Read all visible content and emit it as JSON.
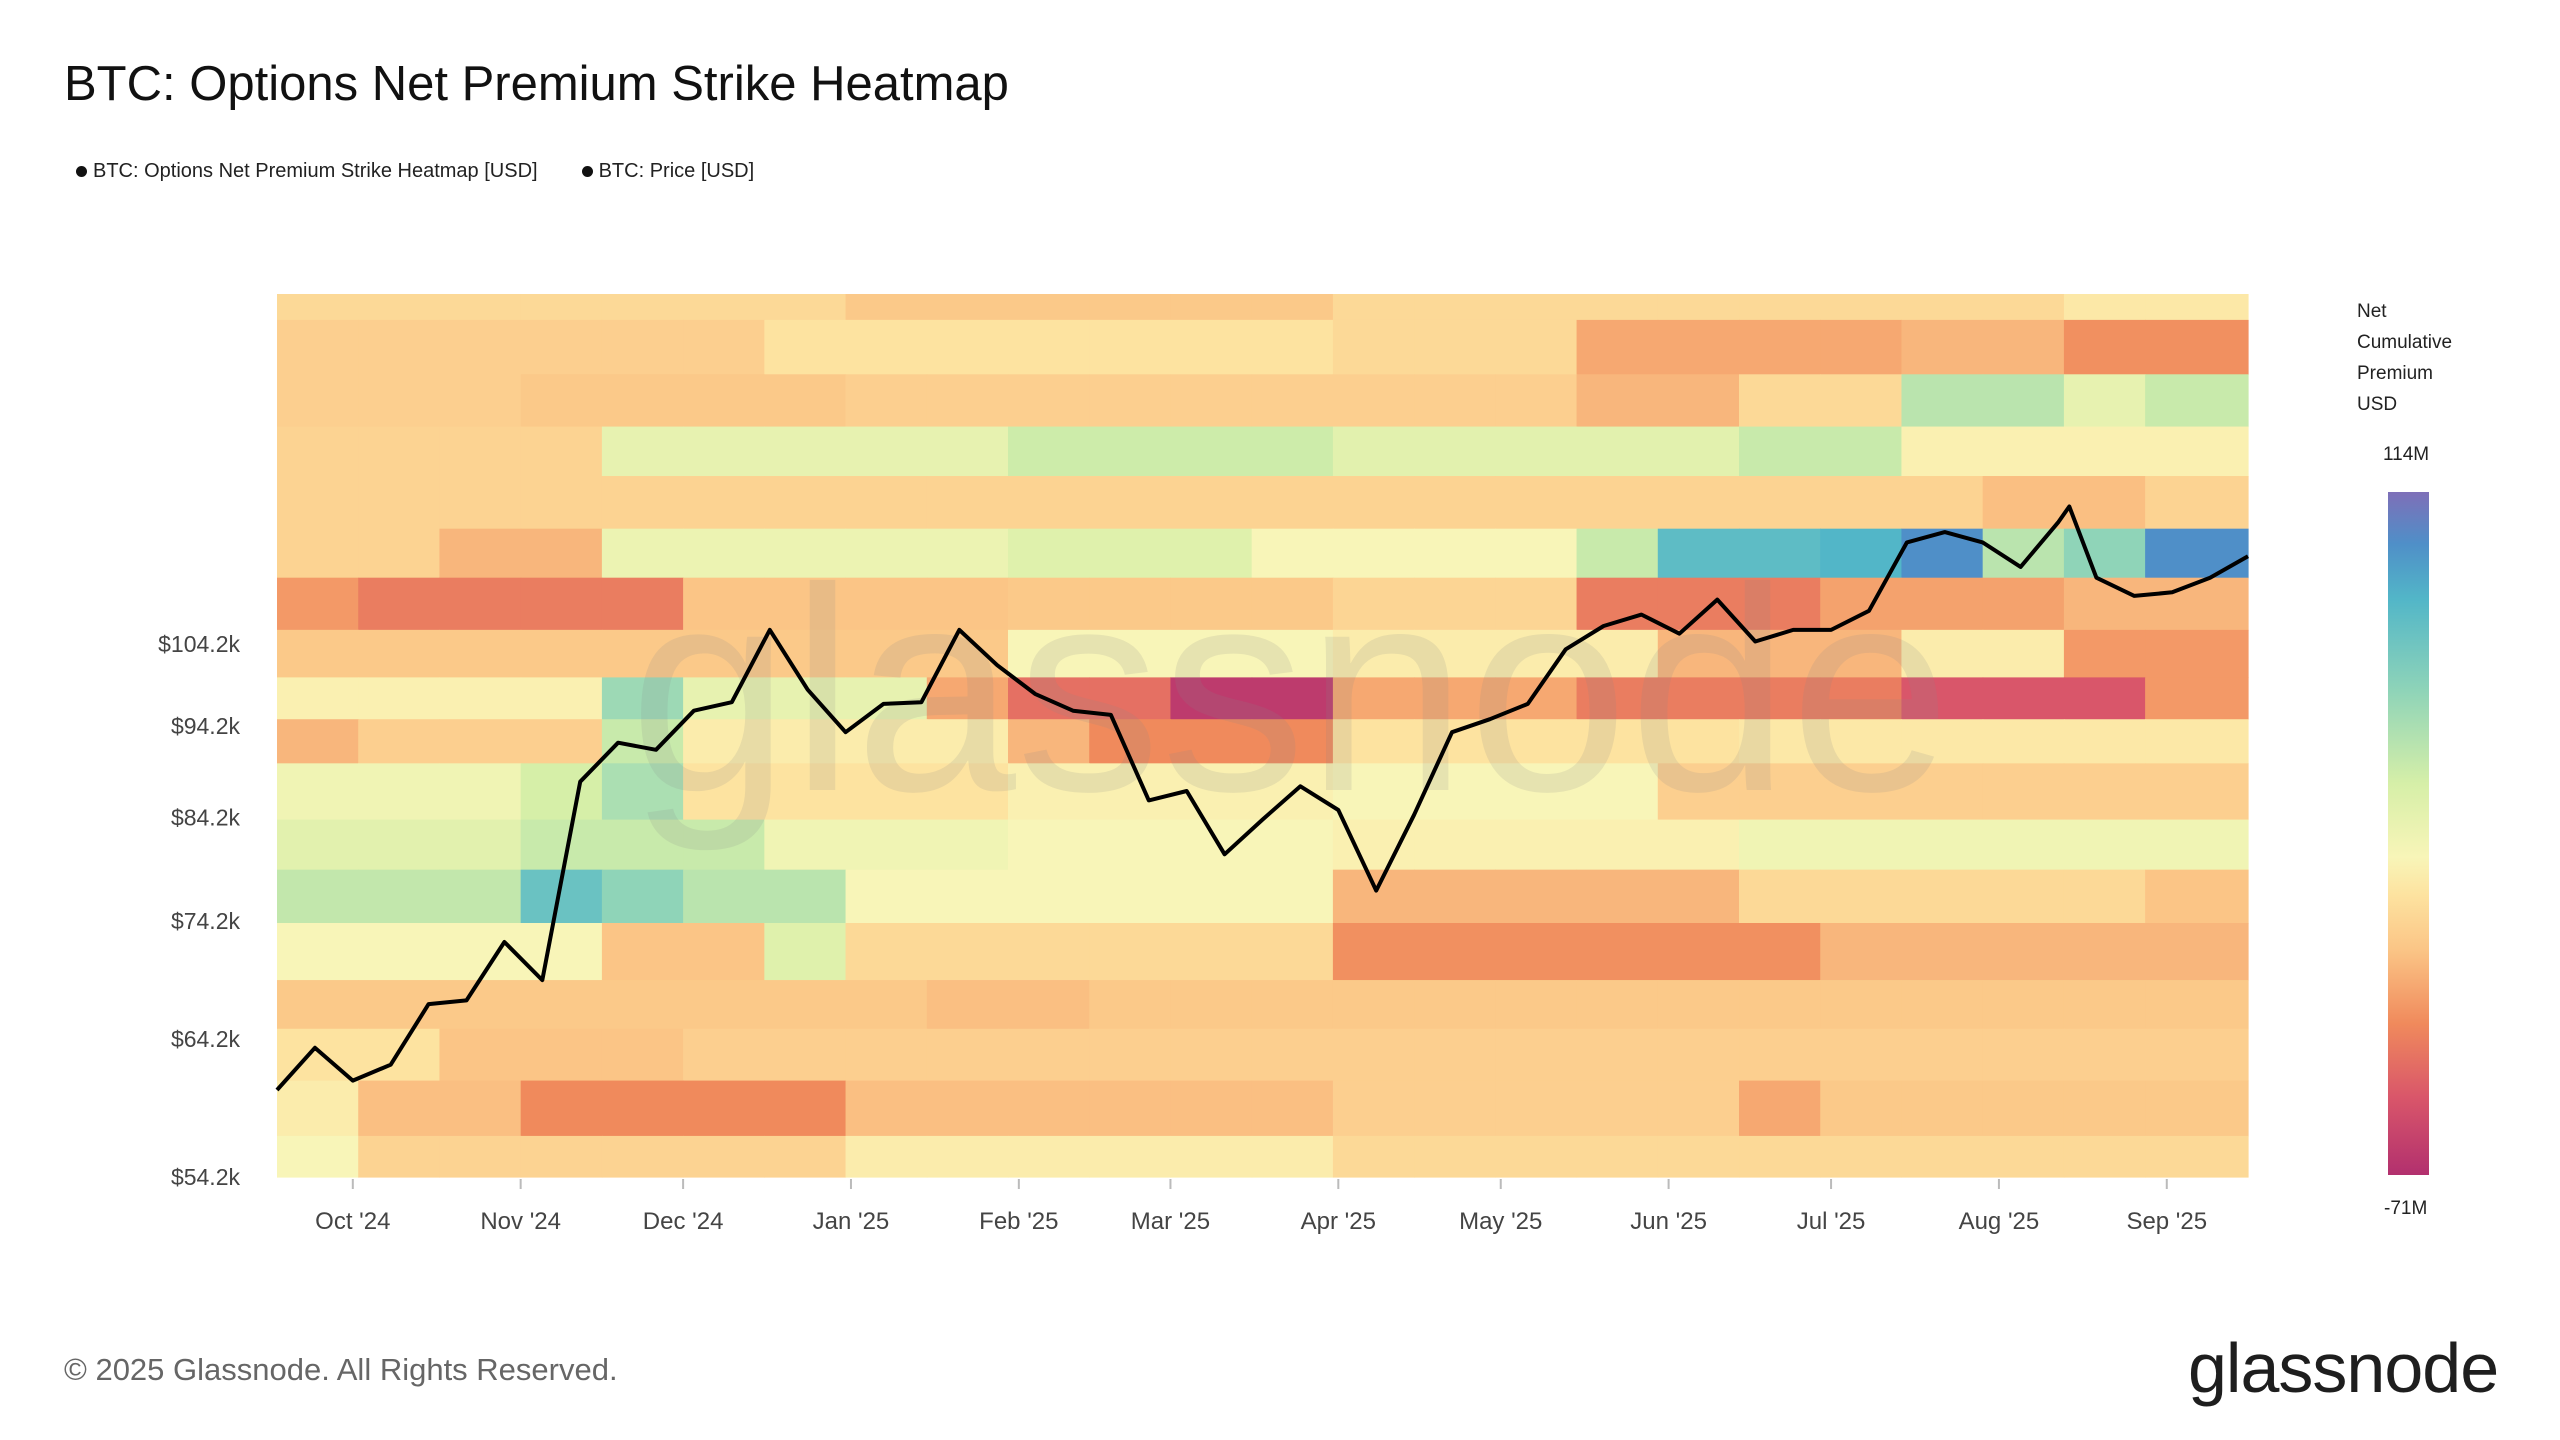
{
  "title": "BTC: Options Net Premium Strike Heatmap",
  "legend": [
    {
      "label": "BTC: Options Net Premium Strike Heatmap [USD]",
      "color": "#111111"
    },
    {
      "label": "BTC: Price [USD]",
      "color": "#111111"
    }
  ],
  "colorbar": {
    "title_lines": [
      "Net",
      "Cumulative",
      "Premium",
      "USD"
    ],
    "max_label": "114M",
    "min_label": "-71M",
    "min": -71,
    "max": 114,
    "stops": [
      [
        -71,
        "#b2306e"
      ],
      [
        -50,
        "#d9566a"
      ],
      [
        -30,
        "#f08a5c"
      ],
      [
        -10,
        "#fbc586"
      ],
      [
        5,
        "#fde3a0"
      ],
      [
        15,
        "#f8f5b8"
      ],
      [
        35,
        "#d6efa8"
      ],
      [
        60,
        "#8fd4b8"
      ],
      [
        85,
        "#52b6c8"
      ],
      [
        100,
        "#4f8fc8"
      ],
      [
        114,
        "#7e6fb8"
      ]
    ]
  },
  "footer": "© 2025 Glassnode. All Rights Reserved.",
  "logo": "glassnode",
  "watermark": "glassnode",
  "chart_data": {
    "type": "heatmap",
    "title": "BTC: Options Net Premium Strike Heatmap",
    "y_scale": "log",
    "ylim": [
      54200,
      160000
    ],
    "xlim": [
      "2024-09-17",
      "2025-09-16"
    ],
    "grid": false,
    "legend_placement": "top-left",
    "y_ticks": [
      {
        "label": "$104.2k",
        "value": 104200
      },
      {
        "label": "$94.2k",
        "value": 94200
      },
      {
        "label": "$84.2k",
        "value": 84200
      },
      {
        "label": "$74.2k",
        "value": 74200
      },
      {
        "label": "$64.2k",
        "value": 64200
      },
      {
        "label": "$54.2k",
        "value": 54200
      }
    ],
    "x_ticks": [
      {
        "label": "Oct '24",
        "date": "2024-10-01"
      },
      {
        "label": "Nov '24",
        "date": "2024-11-01"
      },
      {
        "label": "Dec '24",
        "date": "2024-12-01"
      },
      {
        "label": "Jan '25",
        "date": "2025-01-01"
      },
      {
        "label": "Feb '25",
        "date": "2025-02-01"
      },
      {
        "label": "Mar '25",
        "date": "2025-03-01"
      },
      {
        "label": "Apr '25",
        "date": "2025-04-01"
      },
      {
        "label": "May '25",
        "date": "2025-05-01"
      },
      {
        "label": "Jun '25",
        "date": "2025-06-01"
      },
      {
        "label": "Jul '25",
        "date": "2025-07-01"
      },
      {
        "label": "Aug '25",
        "date": "2025-08-01"
      },
      {
        "label": "Sep '25",
        "date": "2025-09-01"
      }
    ],
    "time_bin_edges": [
      "2024-09-17",
      "2024-10-02",
      "2024-10-17",
      "2024-11-01",
      "2024-11-16",
      "2024-12-01",
      "2024-12-16",
      "2024-12-31",
      "2025-01-15",
      "2025-01-30",
      "2025-02-14",
      "2025-03-01",
      "2025-03-16",
      "2025-03-31",
      "2025-04-15",
      "2025-04-30",
      "2025-05-15",
      "2025-05-30",
      "2025-06-14",
      "2025-06-29",
      "2025-07-14",
      "2025-07-29",
      "2025-08-13",
      "2025-08-28",
      "2025-09-16"
    ],
    "strike_bin_edges_usd": [
      160000,
      155000,
      145000,
      136000,
      128000,
      120000,
      113000,
      106000,
      100000,
      95000,
      90000,
      84000,
      79000,
      74000,
      69000,
      65000,
      61000,
      57000,
      54000
    ],
    "heatmap_values_musd_top_to_bottom": [
      [
        0,
        0,
        0,
        0,
        0,
        0,
        0,
        -8,
        -8,
        -8,
        -8,
        -8,
        -8,
        0,
        0,
        0,
        0,
        0,
        0,
        0,
        0,
        0,
        8,
        8
      ],
      [
        -5,
        -5,
        -5,
        -5,
        -5,
        -5,
        5,
        5,
        5,
        5,
        5,
        5,
        5,
        0,
        0,
        0,
        -20,
        -20,
        -20,
        -20,
        -15,
        -15,
        -28,
        -28
      ],
      [
        -5,
        -5,
        -5,
        -8,
        -8,
        -8,
        -8,
        -5,
        -5,
        -5,
        -5,
        -5,
        -5,
        -5,
        -5,
        -5,
        -15,
        -15,
        0,
        0,
        45,
        45,
        25,
        40
      ],
      [
        -3,
        -3,
        -3,
        -3,
        25,
        25,
        25,
        25,
        25,
        38,
        38,
        38,
        38,
        28,
        28,
        28,
        28,
        28,
        40,
        40,
        12,
        12,
        12,
        12
      ],
      [
        -3,
        -3,
        -3,
        -3,
        -3,
        -3,
        -3,
        -3,
        -3,
        -3,
        -3,
        -3,
        -3,
        -3,
        -3,
        -3,
        -3,
        -3,
        -3,
        -3,
        -3,
        -12,
        -12,
        -3
      ],
      [
        -3,
        -3,
        -15,
        -15,
        22,
        22,
        22,
        22,
        22,
        30,
        30,
        30,
        15,
        15,
        15,
        15,
        40,
        80,
        80,
        85,
        100,
        45,
        60,
        100
      ],
      [
        -25,
        -35,
        -35,
        -35,
        -35,
        -10,
        -10,
        -10,
        -10,
        -8,
        -8,
        -8,
        -8,
        -2,
        -2,
        -2,
        -35,
        -35,
        -35,
        -22,
        -22,
        -22,
        -15,
        -15
      ],
      [
        -8,
        -8,
        -8,
        -8,
        -8,
        -8,
        -8,
        -8,
        -8,
        15,
        15,
        15,
        15,
        10,
        10,
        10,
        10,
        -15,
        -15,
        -15,
        10,
        10,
        -25,
        -25
      ],
      [
        12,
        12,
        12,
        12,
        55,
        25,
        25,
        25,
        -20,
        -40,
        -40,
        -65,
        -65,
        -20,
        -20,
        -20,
        -35,
        -35,
        -35,
        -35,
        -50,
        -50,
        -50,
        -25
      ],
      [
        -15,
        -5,
        -5,
        -5,
        40,
        10,
        10,
        10,
        10,
        -15,
        -30,
        -30,
        -30,
        5,
        5,
        5,
        5,
        5,
        8,
        8,
        8,
        8,
        8,
        8
      ],
      [
        20,
        20,
        20,
        35,
        50,
        5,
        5,
        5,
        5,
        12,
        12,
        12,
        12,
        15,
        15,
        15,
        15,
        -5,
        -5,
        -5,
        -5,
        -5,
        -5,
        -5
      ],
      [
        28,
        28,
        28,
        40,
        40,
        40,
        20,
        20,
        20,
        15,
        15,
        15,
        15,
        12,
        12,
        12,
        12,
        12,
        20,
        20,
        20,
        20,
        20,
        20
      ],
      [
        42,
        42,
        42,
        75,
        60,
        45,
        45,
        15,
        15,
        15,
        15,
        15,
        15,
        -15,
        -15,
        -15,
        -15,
        -15,
        0,
        0,
        0,
        0,
        0,
        -10
      ],
      [
        15,
        15,
        15,
        15,
        -10,
        -10,
        30,
        0,
        0,
        0,
        0,
        0,
        0,
        -28,
        -28,
        -28,
        -28,
        -28,
        -28,
        -15,
        -15,
        -15,
        -15,
        -15
      ],
      [
        -8,
        -8,
        -8,
        -8,
        -8,
        -8,
        -8,
        -8,
        -12,
        -12,
        -8,
        -8,
        -8,
        -8,
        -8,
        -8,
        -8,
        -8,
        -8,
        -8,
        -8,
        -8,
        -8,
        -8
      ],
      [
        5,
        5,
        -10,
        -10,
        -10,
        -5,
        -5,
        -5,
        -5,
        -5,
        -5,
        -5,
        -5,
        -5,
        -5,
        -5,
        -5,
        -5,
        -5,
        -5,
        -5,
        -5,
        -5,
        -5
      ],
      [
        10,
        -12,
        -12,
        -30,
        -30,
        -30,
        -30,
        -12,
        -12,
        -12,
        -12,
        -12,
        -12,
        -5,
        -5,
        -5,
        -5,
        -5,
        -20,
        -8,
        -8,
        -8,
        -8,
        -8
      ],
      [
        15,
        -3,
        -3,
        -3,
        -3,
        -3,
        -3,
        10,
        10,
        10,
        10,
        10,
        10,
        0,
        0,
        0,
        0,
        0,
        0,
        0,
        0,
        0,
        0,
        0
      ]
    ],
    "price_series": {
      "name": "BTC: Price [USD]",
      "color": "#000000",
      "points": [
        [
          "2024-09-17",
          60300
        ],
        [
          "2024-09-24",
          63500
        ],
        [
          "2024-10-01",
          61000
        ],
        [
          "2024-10-08",
          62200
        ],
        [
          "2024-10-15",
          67000
        ],
        [
          "2024-10-22",
          67300
        ],
        [
          "2024-10-29",
          72300
        ],
        [
          "2024-11-05",
          69000
        ],
        [
          "2024-11-12",
          88000
        ],
        [
          "2024-11-19",
          92300
        ],
        [
          "2024-11-26",
          91500
        ],
        [
          "2024-12-03",
          96000
        ],
        [
          "2024-12-10",
          97000
        ],
        [
          "2024-12-17",
          106000
        ],
        [
          "2024-12-24",
          98500
        ],
        [
          "2024-12-31",
          93500
        ],
        [
          "2025-01-07",
          96800
        ],
        [
          "2025-01-14",
          97000
        ],
        [
          "2025-01-21",
          106000
        ],
        [
          "2025-01-28",
          101500
        ],
        [
          "2025-02-04",
          98000
        ],
        [
          "2025-02-11",
          96000
        ],
        [
          "2025-02-18",
          95500
        ],
        [
          "2025-02-25",
          86000
        ],
        [
          "2025-03-04",
          87000
        ],
        [
          "2025-03-11",
          80500
        ],
        [
          "2025-03-18",
          84000
        ],
        [
          "2025-03-25",
          87500
        ],
        [
          "2025-04-01",
          85000
        ],
        [
          "2025-04-08",
          77000
        ],
        [
          "2025-04-15",
          84500
        ],
        [
          "2025-04-22",
          93500
        ],
        [
          "2025-04-29",
          95000
        ],
        [
          "2025-05-06",
          96800
        ],
        [
          "2025-05-13",
          103500
        ],
        [
          "2025-05-20",
          106500
        ],
        [
          "2025-05-27",
          108000
        ],
        [
          "2025-06-03",
          105500
        ],
        [
          "2025-06-10",
          110000
        ],
        [
          "2025-06-17",
          104500
        ],
        [
          "2025-06-24",
          106000
        ],
        [
          "2025-07-01",
          106000
        ],
        [
          "2025-07-08",
          108500
        ],
        [
          "2025-07-15",
          118000
        ],
        [
          "2025-07-22",
          119500
        ],
        [
          "2025-07-29",
          118000
        ],
        [
          "2025-08-05",
          114500
        ],
        [
          "2025-08-12",
          121000
        ],
        [
          "2025-08-14",
          123300
        ],
        [
          "2025-08-19",
          113000
        ],
        [
          "2025-08-26",
          110500
        ],
        [
          "2025-09-02",
          111000
        ],
        [
          "2025-09-09",
          113000
        ],
        [
          "2025-09-16",
          116000
        ]
      ]
    }
  }
}
